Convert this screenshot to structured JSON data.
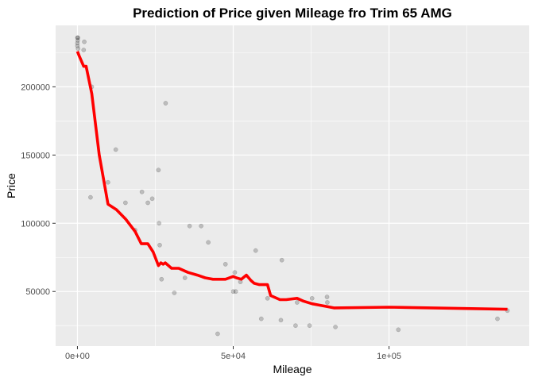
{
  "chart_data": {
    "type": "scatter",
    "title": "Prediction of Price given Mileage fro Trim 65 AMG",
    "xlabel": "Mileage",
    "ylabel": "Price",
    "xlim": [
      -7000,
      145000
    ],
    "ylim": [
      10000,
      245000
    ],
    "x_ticks": [
      {
        "value": 0,
        "label": "0e+00"
      },
      {
        "value": 50000,
        "label": "5e+04"
      },
      {
        "value": 100000,
        "label": "1e+05"
      }
    ],
    "y_ticks": [
      {
        "value": 50000,
        "label": "50000"
      },
      {
        "value": 100000,
        "label": "100000"
      },
      {
        "value": 150000,
        "label": "150000"
      },
      {
        "value": 200000,
        "label": "200000"
      }
    ],
    "grid": true,
    "background_color": "#ebebeb",
    "series": [
      {
        "type": "scatter",
        "color": "#000000",
        "opacity": 0.2,
        "x": [
          0,
          0,
          0,
          100,
          200,
          150,
          2000,
          2200,
          4200,
          4600,
          9800,
          12300,
          15400,
          18500,
          20700,
          22600,
          24000,
          26000,
          26200,
          26400,
          27000,
          28300,
          31100,
          34500,
          36000,
          39700,
          42000,
          45000,
          47500,
          50000,
          50500,
          50800,
          52300,
          57200,
          59000,
          61000,
          65300,
          65600,
          70000,
          70500,
          74500,
          75300,
          80100,
          80200,
          82800,
          103000,
          134800,
          138000
        ],
        "y": [
          236000,
          232000,
          230000,
          234000,
          228000,
          236000,
          227000,
          233000,
          119000,
          200000,
          130000,
          154000,
          115000,
          95000,
          123000,
          115000,
          118000,
          139000,
          100000,
          84000,
          59000,
          188000,
          49000,
          60000,
          98000,
          98000,
          86000,
          19000,
          70000,
          50000,
          64000,
          50000,
          57000,
          80000,
          30000,
          45000,
          29000,
          73000,
          25000,
          42000,
          25000,
          45000,
          46000,
          42000,
          24000,
          22000,
          30000,
          36000
        ]
      },
      {
        "type": "line",
        "color": "#ff0000",
        "x": [
          0,
          500,
          2000,
          2800,
          4600,
          7000,
          9800,
          12500,
          15500,
          18500,
          20500,
          22600,
          24300,
          26000,
          26800,
          27500,
          28200,
          30200,
          32500,
          35500,
          38500,
          41000,
          43500,
          45800,
          47500,
          50000,
          51000,
          52600,
          54200,
          55700,
          56700,
          58400,
          61000,
          62000,
          65000,
          67000,
          70500,
          72500,
          75300,
          80000,
          82300,
          100000,
          138000
        ],
        "y": [
          226000,
          223000,
          215000,
          215000,
          195000,
          150000,
          114000,
          110000,
          103000,
          94000,
          85000,
          85000,
          79000,
          69000,
          71000,
          70000,
          71000,
          67000,
          67000,
          64000,
          62000,
          60000,
          59000,
          59000,
          59000,
          61000,
          60000,
          59000,
          62000,
          58000,
          56000,
          55000,
          55000,
          47000,
          44000,
          44000,
          45000,
          43000,
          41000,
          39000,
          38000,
          38500,
          37000
        ]
      }
    ]
  }
}
